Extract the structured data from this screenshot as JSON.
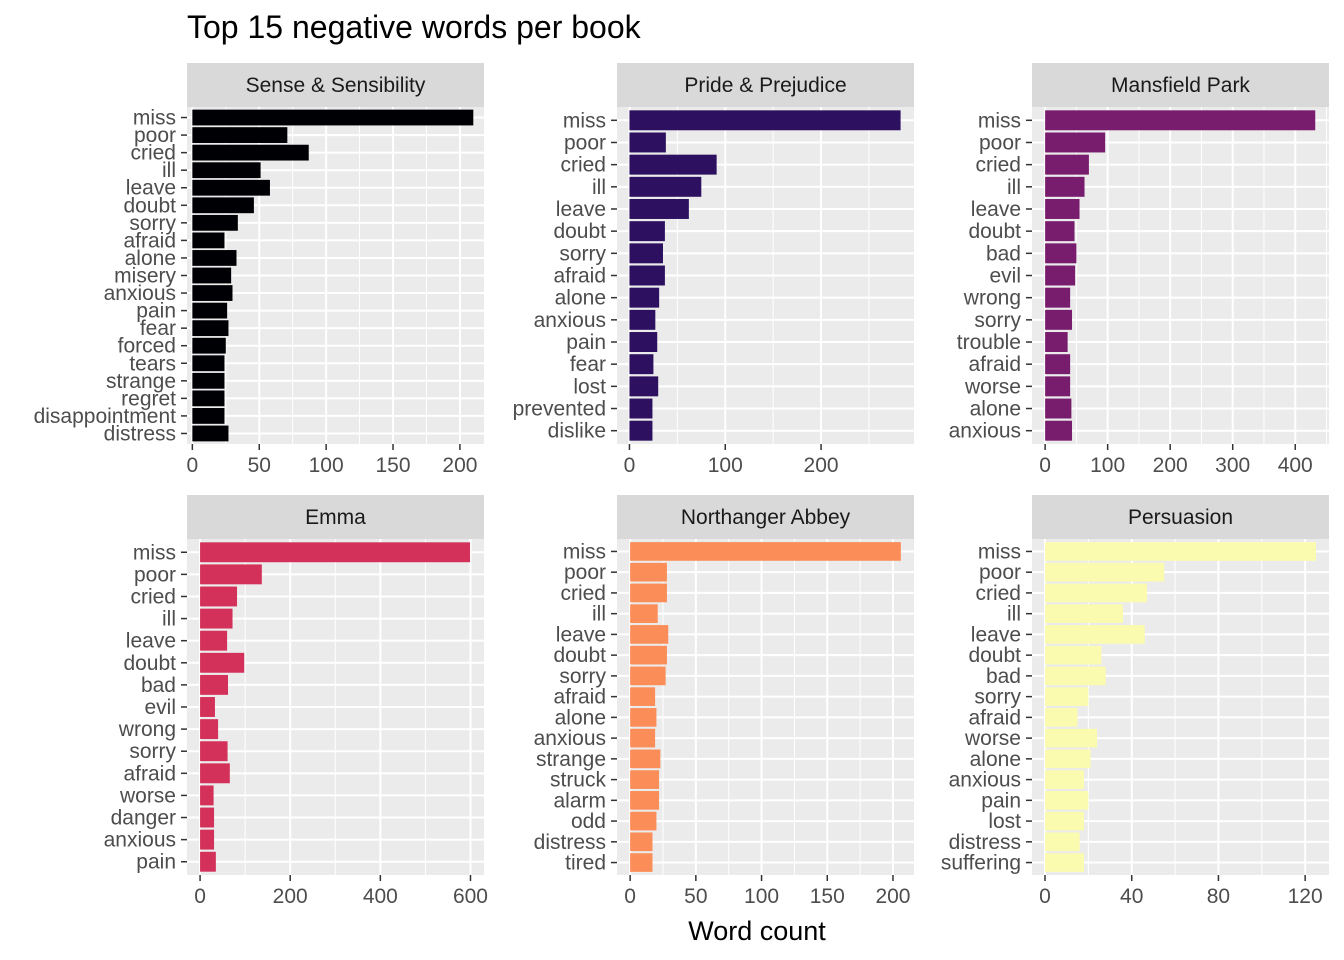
{
  "chart_data": {
    "type": "bar",
    "title": "Top 15 negative words per book",
    "xlabel": "Word count",
    "ylabel": "",
    "grid": true,
    "facets": [
      {
        "name": "Sense & Sensibility",
        "color": "#000004",
        "xlim": [
          -4,
          218
        ],
        "ticks": [
          0,
          50,
          100,
          150,
          200
        ],
        "categories": [
          "miss",
          "poor",
          "cried",
          "ill",
          "leave",
          "doubt",
          "sorry",
          "afraid",
          "alone",
          "misery",
          "anxious",
          "pain",
          "fear",
          "forced",
          "tears",
          "strange",
          "regret",
          "disappointment",
          "distress"
        ],
        "values": [
          210,
          71,
          87,
          51,
          58,
          46,
          34,
          24,
          33,
          29,
          30,
          26,
          27,
          25,
          24,
          24,
          24,
          24,
          27
        ]
      },
      {
        "name": "Pride & Prejudice",
        "color": "#2d1160",
        "xlim": [
          -13,
          297
        ],
        "ticks": [
          0,
          100,
          200
        ],
        "categories": [
          "miss",
          "poor",
          "cried",
          "ill",
          "leave",
          "doubt",
          "sorry",
          "afraid",
          "alone",
          "anxious",
          "pain",
          "fear",
          "lost",
          "prevented",
          "dislike"
        ],
        "values": [
          283,
          38,
          91,
          75,
          62,
          37,
          35,
          37,
          31,
          27,
          29,
          25,
          30,
          24,
          24
        ]
      },
      {
        "name": "Mansfield Park",
        "color": "#781c6d",
        "xlim": [
          -21,
          454
        ],
        "ticks": [
          0,
          100,
          200,
          300,
          400
        ],
        "categories": [
          "miss",
          "poor",
          "cried",
          "ill",
          "leave",
          "doubt",
          "bad",
          "evil",
          "wrong",
          "sorry",
          "trouble",
          "afraid",
          "worse",
          "alone",
          "anxious"
        ],
        "values": [
          432,
          96,
          70,
          63,
          55,
          47,
          50,
          48,
          40,
          43,
          36,
          40,
          40,
          42,
          43
        ]
      },
      {
        "name": "Emma",
        "color": "#d3305a",
        "xlim": [
          -29,
          630
        ],
        "ticks": [
          0,
          200,
          400,
          600
        ],
        "categories": [
          "miss",
          "poor",
          "cried",
          "ill",
          "leave",
          "doubt",
          "bad",
          "evil",
          "wrong",
          "sorry",
          "afraid",
          "worse",
          "danger",
          "anxious",
          "pain"
        ],
        "values": [
          599,
          137,
          82,
          72,
          60,
          98,
          62,
          33,
          40,
          61,
          66,
          30,
          31,
          31,
          35
        ]
      },
      {
        "name": "Northanger Abbey",
        "color": "#fb8d58",
        "xlim": [
          -10,
          216
        ],
        "ticks": [
          0,
          50,
          100,
          150,
          200
        ],
        "categories": [
          "miss",
          "poor",
          "cried",
          "ill",
          "leave",
          "doubt",
          "sorry",
          "afraid",
          "alone",
          "anxious",
          "strange",
          "struck",
          "alarm",
          "odd",
          "distress",
          "tired"
        ],
        "values": [
          206,
          28,
          28,
          21,
          29,
          28,
          27,
          19,
          20,
          19,
          23,
          22,
          22,
          20,
          17,
          17
        ]
      },
      {
        "name": "Persuasion",
        "color": "#fbfbaf",
        "xlim": [
          -6,
          131
        ],
        "ticks": [
          0,
          40,
          80,
          120
        ],
        "tick_labels": [
          "0",
          "40",
          "80",
          "120"
        ],
        "categories": [
          "miss",
          "poor",
          "cried",
          "ill",
          "leave",
          "doubt",
          "bad",
          "sorry",
          "afraid",
          "worse",
          "alone",
          "anxious",
          "pain",
          "lost",
          "distress",
          "suffering"
        ],
        "values": [
          125,
          55,
          47,
          36,
          46,
          26,
          28,
          20,
          15,
          24,
          21,
          18,
          20,
          18,
          16,
          18
        ]
      }
    ]
  }
}
